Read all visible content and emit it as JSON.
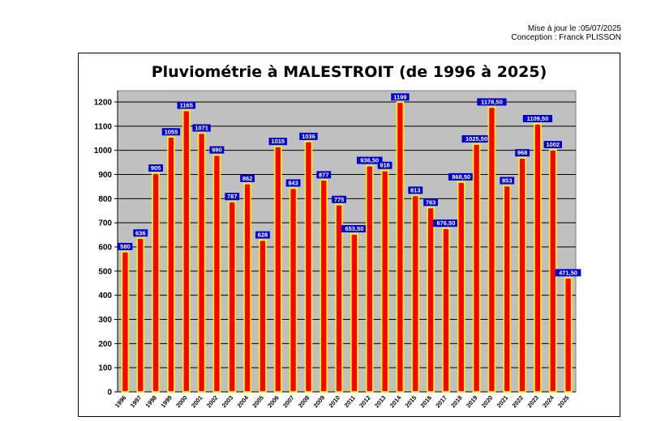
{
  "header": {
    "update_line": "Mise à jour le :05/07/2025",
    "author_line": "Conception : Franck PLISSON"
  },
  "chart_data": {
    "type": "bar",
    "title": "Pluviométrie à MALESTROIT (de 1996 à 2025)",
    "xlabel": "",
    "ylabel": "",
    "ylim": [
      0,
      1200
    ],
    "yticks": [
      0,
      100,
      200,
      300,
      400,
      500,
      600,
      700,
      800,
      900,
      1000,
      1100,
      1200
    ],
    "grid": true,
    "legend": "none",
    "categories": [
      "1996",
      "1997",
      "1998",
      "1999",
      "2000",
      "2001",
      "2002",
      "2003",
      "2004",
      "2005",
      "2006",
      "2007",
      "2008",
      "2009",
      "2010",
      "2011",
      "2012",
      "2013",
      "2014",
      "2015",
      "2016",
      "2017",
      "2018",
      "2019",
      "2020",
      "2021",
      "2022",
      "2023",
      "2024",
      "2025"
    ],
    "values": [
      580,
      636,
      905,
      1055,
      1165,
      1071,
      980,
      787,
      862,
      628,
      1015,
      843,
      1036,
      877,
      775,
      653.5,
      936.5,
      916,
      1199,
      813,
      763,
      676.5,
      868.5,
      1025.5,
      1178.5,
      853,
      968,
      1109.5,
      1002,
      471.5
    ],
    "value_labels": [
      "580",
      "636",
      "905",
      "1055",
      "1165",
      "1071",
      "980",
      "787",
      "862",
      "628",
      "1015",
      "843",
      "1036",
      "877",
      "775",
      "653,50",
      "936,50",
      "916",
      "1199",
      "813",
      "763",
      "676,50",
      "868,50",
      "1025,50",
      "1178,50",
      "853",
      "968",
      "1109,50",
      "1002",
      "471,50"
    ],
    "colors": {
      "plot_background": "#c0c0c0",
      "bar_fill": "#ff0000",
      "bar_outline": "#ffff00",
      "label_background": "#0000cc",
      "label_text": "#ffffff",
      "grid": "#000000"
    }
  }
}
